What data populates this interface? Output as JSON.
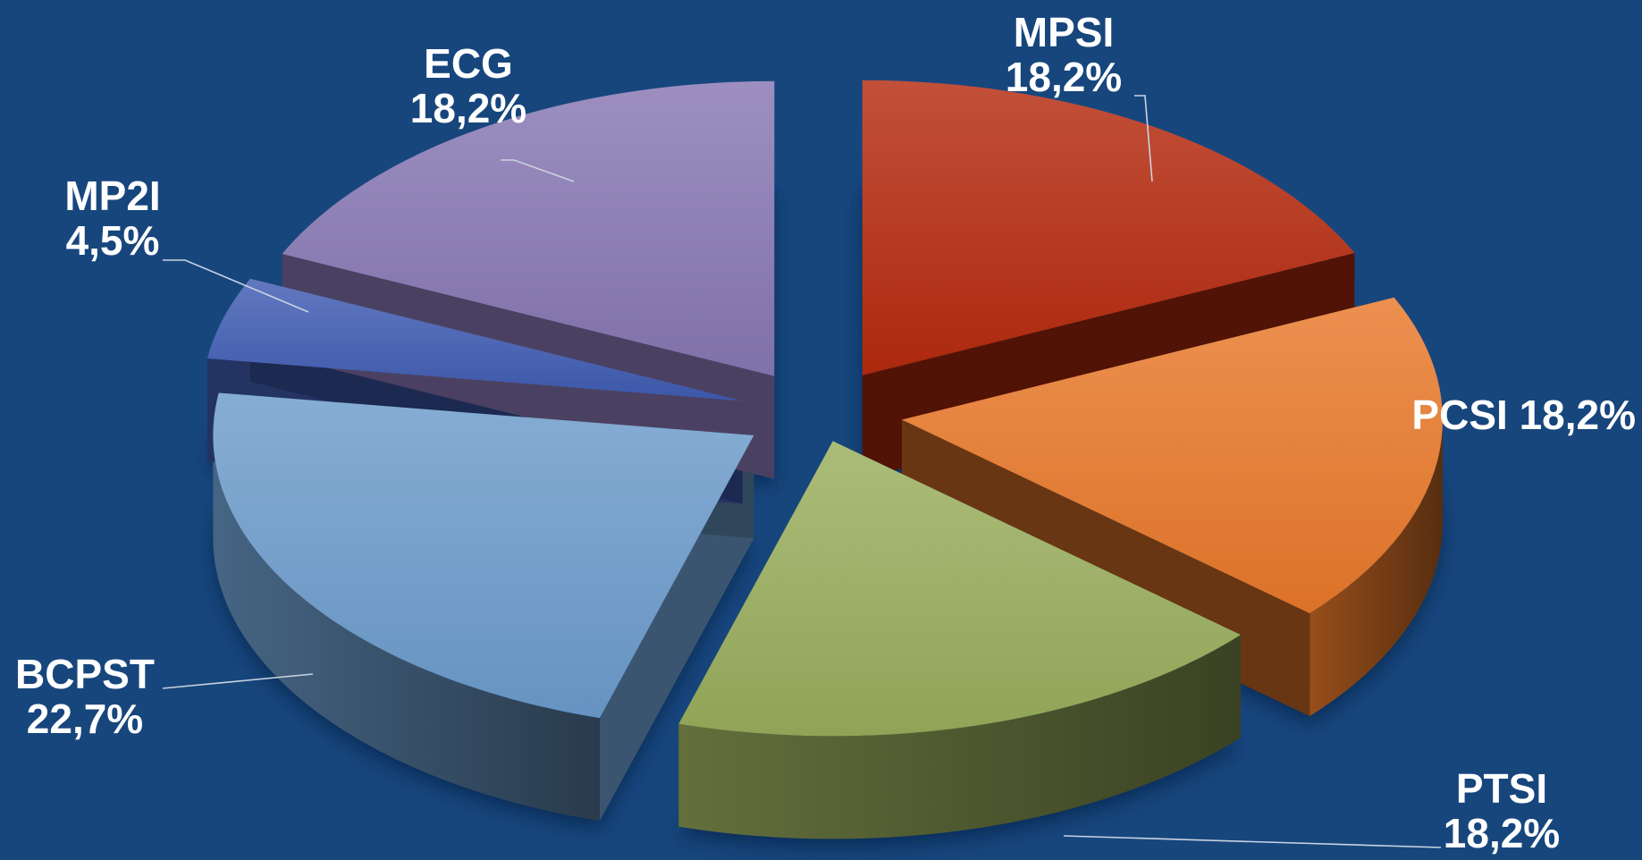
{
  "chart_data": {
    "type": "pie",
    "title": "",
    "series": [
      {
        "category": "MPSI",
        "value": 18.2,
        "label_lines": [
          "MPSI",
          "18,2%"
        ],
        "color": "#b52a0e"
      },
      {
        "category": "PCSI",
        "value": 18.2,
        "label_lines": [
          "PCSI 18,2%"
        ],
        "color": "#e8782a"
      },
      {
        "category": "PTSI",
        "value": 18.2,
        "label_lines": [
          "PTSI",
          "18,2%"
        ],
        "color": "#98ad5c"
      },
      {
        "category": "BCPST",
        "value": 22.7,
        "label_lines": [
          "BCPST",
          "22,7%"
        ],
        "color": "#6b9bcb"
      },
      {
        "category": "MP2I",
        "value": 4.5,
        "label_lines": [
          "MP2I",
          "4,5%"
        ],
        "color": "#3f5cb2"
      },
      {
        "category": "ECG",
        "value": 18.2,
        "label_lines": [
          "ECG",
          "18,2%"
        ],
        "color": "#8677b2"
      }
    ],
    "style": "3d-exploded",
    "legend": "none"
  }
}
